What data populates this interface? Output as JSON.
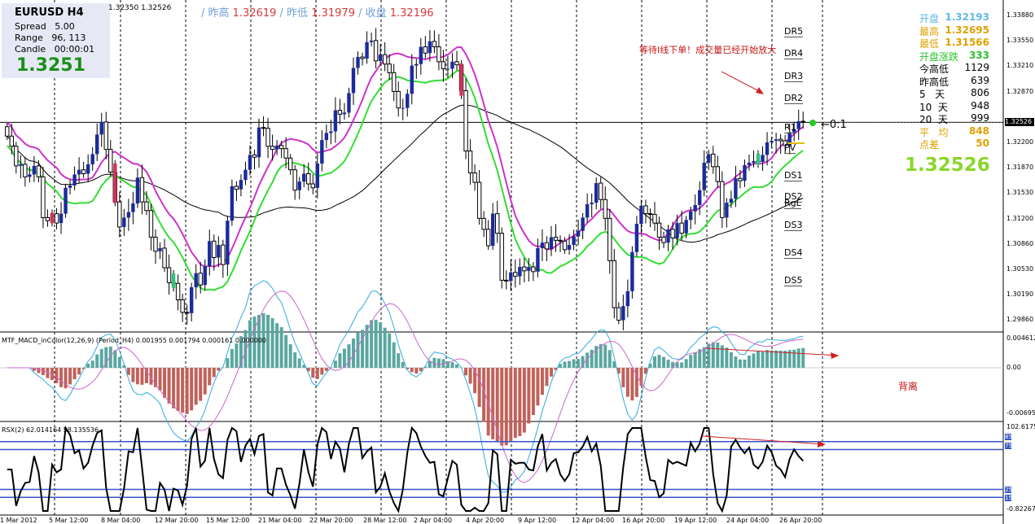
{
  "infobox": {
    "title": "EURUSD   H4",
    "spread": "Spread   5.00",
    "range": "Range   96, 113",
    "candle": "Candle   00:00:01",
    "price": "1.3251"
  },
  "top_quote": "1.32350 1.32526",
  "ohlc": {
    "l1": "/ 昨高 ",
    "v1": "1.32619",
    "l2": " / 昨低 ",
    "v2": "1.31979",
    "l3": " / 收盘 ",
    "v3": "1.32196"
  },
  "stats": {
    "rows": [
      {
        "label": "开盘",
        "value": "1.32193",
        "color": "#5fb8e8"
      },
      {
        "label": "最高",
        "value": "1.32695",
        "color": "#e0a000"
      },
      {
        "label": "最低",
        "value": "1.31566",
        "color": "#e0a000"
      },
      {
        "label": "开盘涨跌",
        "value": "333",
        "color": "#2cc22c"
      },
      {
        "label": "今高低",
        "value": "1129",
        "color": "#000000"
      },
      {
        "label": "昨高低",
        "value": "639",
        "color": "#000000"
      },
      {
        "label": "5   天",
        "value": "806",
        "color": "#000000"
      },
      {
        "label": "10  天",
        "value": "948",
        "color": "#000000"
      },
      {
        "label": "20  天",
        "value": "999",
        "color": "#000000"
      },
      {
        "label": "平   均",
        "value": "848",
        "color": "#e0a000"
      },
      {
        "label": "点差",
        "value": "50",
        "color": "#e0a000"
      }
    ],
    "big_price": "1.32526"
  },
  "annotations": {
    "wait_text": "等待I线下单！成交量已经开始放大",
    "divergence_text": "背离",
    "marker": "←0:1"
  },
  "levels": [
    "DR5",
    "DR4",
    "DR3",
    "DR2",
    "R1",
    "PV",
    "DS1",
    "DS2",
    "RgL",
    "DS3",
    "DS4",
    "DS5"
  ],
  "macd_label": "MTF_MACD_inColor(12,26,9) (Period_H4) 0.001955 0.001794 0.000161 0.000000",
  "rsx_label": "RSX(2) 62.014164 58.135536",
  "price_axis": [
    "1.33880",
    "1.33550",
    "1.33210",
    "1.32870",
    "1.32526",
    "1.32200",
    "1.31870",
    "1.31530",
    "1.31200",
    "1.30860",
    "1.30530",
    "1.30190",
    "1.29860"
  ],
  "current_price_box": "1.32526",
  "macd_axis": [
    "0.004612",
    "0.00",
    "-0.00695"
  ],
  "rsx_axis": [
    "102.6175",
    "85",
    "75",
    "25",
    "15",
    "-0.82267"
  ],
  "time_axis": [
    "1 Mar 2012",
    "5 Mar 12:00",
    "8 Mar 04:00",
    "12 Mar 20:00",
    "15 Mar 12:00",
    "21 Mar 04:00",
    "22 Mar 20:00",
    "28 Mar 12:00",
    "2 Apr 04:00",
    "4 Apr 20:00",
    "9 Apr 12:00",
    "12 Apr 04:00",
    "16 Apr 20:00",
    "19 Apr 12:00",
    "24 Apr 04:00",
    "26 Apr 20:00"
  ],
  "colors": {
    "bull": "#1a2b9c",
    "bear": "#d0345a",
    "ma_magenta": "#cc33cc",
    "ma_green": "#33dd33",
    "ma_black": "#000000",
    "macd_pos": "#5aa7a0",
    "macd_neg": "#c0625a",
    "level_blue": "#3355cc"
  },
  "chart_data": {
    "type": "candlestick",
    "symbol": "EURUSD",
    "timeframe": "H4",
    "ylim": [
      1.2986,
      1.3388
    ],
    "close": [
      1.3235,
      1.3222,
      1.3197,
      1.3199,
      1.3183,
      1.3186,
      1.3197,
      1.3183,
      1.3131,
      1.3127,
      1.3136,
      1.3124,
      1.3136,
      1.3169,
      1.3172,
      1.3186,
      1.3192,
      1.3187,
      1.3199,
      1.3212,
      1.3237,
      1.3253,
      1.3218,
      1.3189,
      1.3151,
      1.3119,
      1.3131,
      1.3138,
      1.3149,
      1.3182,
      1.3151,
      1.314,
      1.3106,
      1.3088,
      1.3092,
      1.3067,
      1.3048,
      1.3047,
      1.3026,
      1.301,
      1.3009,
      1.3042,
      1.306,
      1.3045,
      1.3069,
      1.3101,
      1.308,
      1.3096,
      1.3071,
      1.3127,
      1.3171,
      1.3167,
      1.3179,
      1.3192,
      1.3211,
      1.3208,
      1.3246,
      1.3245,
      1.3222,
      1.3218,
      1.3223,
      1.3219,
      1.3207,
      1.3192,
      1.3166,
      1.3177,
      1.3187,
      1.3174,
      1.3169,
      1.32,
      1.323,
      1.3239,
      1.3241,
      1.3268,
      1.3263,
      1.3265,
      1.329,
      1.3322,
      1.3336,
      1.3334,
      1.3355,
      1.3357,
      1.3331,
      1.3339,
      1.3327,
      1.3316,
      1.3292,
      1.3271,
      1.3271,
      1.3289,
      1.3325,
      1.3327,
      1.3349,
      1.3341,
      1.3356,
      1.3349,
      1.333,
      1.3321,
      1.3321,
      1.333,
      1.3326,
      1.3293,
      1.3216,
      1.3188,
      1.3176,
      1.313,
      1.3116,
      1.3095,
      1.3136,
      1.3111,
      1.3051,
      1.305,
      1.3061,
      1.3056,
      1.3068,
      1.3063,
      1.3068,
      1.3062,
      1.3092,
      1.3099,
      1.3091,
      1.3106,
      1.3102,
      1.3101,
      1.309,
      1.3096,
      1.3107,
      1.3114,
      1.3131,
      1.3148,
      1.315,
      1.3175,
      1.3154,
      1.313,
      1.3076,
      1.3016,
      1.3,
      1.3018,
      1.3037,
      1.3087,
      1.3123,
      1.3146,
      1.3136,
      1.3135,
      1.3124,
      1.3106,
      1.3099,
      1.3116,
      1.3105,
      1.3124,
      1.3111,
      1.3128,
      1.3139,
      1.3147,
      1.3166,
      1.3201,
      1.3212,
      1.3196,
      1.3177,
      1.3131,
      1.315,
      1.3155,
      1.3181,
      1.3178,
      1.3198,
      1.3201,
      1.3203,
      1.3202,
      1.3211,
      1.3227,
      1.3229,
      1.3231,
      1.3229,
      1.3223,
      1.324,
      1.3244,
      1.3254,
      1.3253
    ]
  }
}
